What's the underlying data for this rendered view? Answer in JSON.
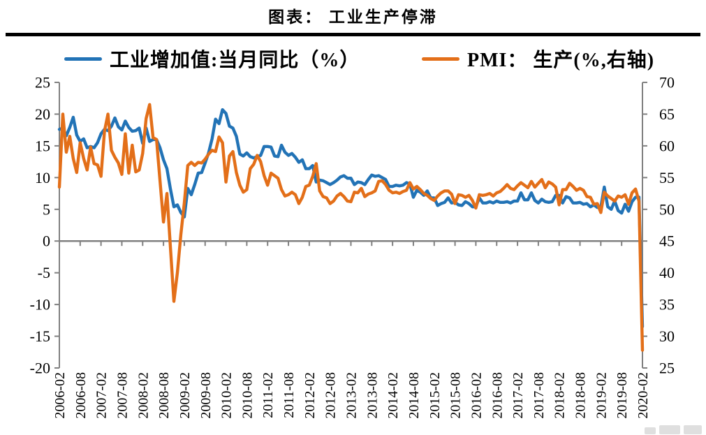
{
  "title": "图表： 工业生产停滞",
  "legend": [
    {
      "label": "工业增加值:当月同比（%）",
      "color": "#2273B6"
    },
    {
      "label": "PMI： 生产(%,右轴)",
      "color": "#E36F19"
    }
  ],
  "chart_data": {
    "type": "line",
    "title": "图表： 工业生产停滞",
    "x_start": "2006-02",
    "x_freq": "monthly",
    "x_count": 169,
    "x_tick_labels": [
      "2006-02",
      "2006-08",
      "2007-02",
      "2007-08",
      "2008-02",
      "2008-08",
      "2009-02",
      "2009-08",
      "2010-02",
      "2010-08",
      "2011-02",
      "2011-08",
      "2012-02",
      "2012-08",
      "2013-02",
      "2013-08",
      "2014-02",
      "2014-08",
      "2015-02",
      "2015-08",
      "2016-02",
      "2016-08",
      "2017-02",
      "2017-08",
      "2018-02",
      "2018-08",
      "2019-02",
      "2019-08",
      "2020-02"
    ],
    "left_axis": {
      "min": -20,
      "max": 25,
      "step": 5,
      "ticks": [
        25,
        20,
        15,
        10,
        5,
        0,
        -5,
        -10,
        -15,
        -20
      ]
    },
    "right_axis": {
      "min": 25,
      "max": 70,
      "step": 5,
      "ticks": [
        70,
        65,
        60,
        55,
        50,
        45,
        40,
        35,
        30,
        25
      ]
    },
    "zero_line_left_value": 0,
    "axis_color": "#808080",
    "grid": "off",
    "legend_position": "top",
    "series": [
      {
        "name": "工业增加值:当月同比（%）",
        "axis": "left",
        "color": "#2273B6",
        "values": [
          17.6,
          17.8,
          16.6,
          17.9,
          19.5,
          16.7,
          15.7,
          16.1,
          14.7,
          14.9,
          14.7,
          15.5,
          16.9,
          17.6,
          17.4,
          18.1,
          19.4,
          18.0,
          17.5,
          18.9,
          17.9,
          17.3,
          17.4,
          17.8,
          15.4,
          17.8,
          15.7,
          16.0,
          16.0,
          14.7,
          12.8,
          11.4,
          8.2,
          5.4,
          5.7,
          4.5,
          3.8,
          8.3,
          7.3,
          8.9,
          10.7,
          10.8,
          12.3,
          13.9,
          16.1,
          19.2,
          18.5,
          20.7,
          20.1,
          18.1,
          17.8,
          16.5,
          13.7,
          13.4,
          13.9,
          13.3,
          13.1,
          13.3,
          13.5,
          14.9,
          14.9,
          14.8,
          13.4,
          13.3,
          15.1,
          14.0,
          13.5,
          13.8,
          13.2,
          12.4,
          12.8,
          11.4,
          11.4,
          11.9,
          9.3,
          9.6,
          9.5,
          9.2,
          8.9,
          9.2,
          9.6,
          10.1,
          10.3,
          9.9,
          9.9,
          8.9,
          9.3,
          9.2,
          8.9,
          9.7,
          10.4,
          10.2,
          10.3,
          10.0,
          9.7,
          8.6,
          8.6,
          8.8,
          8.7,
          8.8,
          9.2,
          9.0,
          6.9,
          8.0,
          7.7,
          7.2,
          7.9,
          6.8,
          6.8,
          5.6,
          5.9,
          6.1,
          6.8,
          6.0,
          6.1,
          5.7,
          5.6,
          6.2,
          5.9,
          5.4,
          5.4,
          6.8,
          6.0,
          6.0,
          6.2,
          6.0,
          6.3,
          6.1,
          6.1,
          6.2,
          6.0,
          6.3,
          6.3,
          7.6,
          6.5,
          6.5,
          7.6,
          6.4,
          6.0,
          6.6,
          6.2,
          6.1,
          6.2,
          7.2,
          7.2,
          6.0,
          7.0,
          6.8,
          6.0,
          6.0,
          6.1,
          5.8,
          5.9,
          5.4,
          5.7,
          5.3,
          5.3,
          8.5,
          5.4,
          5.0,
          6.3,
          4.8,
          4.4,
          5.8,
          4.7,
          6.2,
          6.9,
          6.9,
          -13.5
        ]
      },
      {
        "name": "PMI： 生产(%,右轴)",
        "axis": "right",
        "color": "#E36F19",
        "values": [
          53.5,
          65.0,
          59.0,
          61.5,
          58.0,
          55.8,
          60.5,
          58.0,
          56.2,
          59.8,
          57.2,
          57.0,
          55.2,
          62.3,
          65.0,
          59.3,
          58.2,
          57.3,
          55.5,
          61.9,
          55.7,
          60.1,
          55.9,
          56.2,
          58.8,
          64.3,
          66.5,
          61.3,
          61.0,
          54.5,
          48.0,
          52.5,
          44.0,
          35.5,
          40.0,
          46.0,
          51.0,
          56.9,
          57.4,
          56.9,
          57.4,
          57.3,
          57.9,
          58.7,
          59.3,
          59.1,
          61.4,
          60.5,
          54.3,
          58.4,
          59.1,
          55.8,
          53.8,
          52.7,
          53.1,
          56.4,
          57.1,
          58.5,
          57.5,
          55.3,
          53.8,
          55.7,
          55.3,
          54.9,
          53.1,
          52.1,
          52.3,
          52.7,
          52.3,
          50.9,
          51.9,
          53.6,
          53.8,
          55.2,
          57.2,
          52.9,
          52.0,
          51.8,
          50.9,
          51.3,
          52.1,
          52.5,
          52.0,
          51.3,
          51.2,
          52.7,
          52.6,
          53.3,
          52.0,
          52.4,
          52.6,
          52.9,
          54.4,
          54.5,
          53.9,
          53.0,
          52.6,
          52.7,
          52.5,
          52.8,
          53.0,
          54.2,
          53.2,
          53.6,
          53.1,
          52.5,
          52.2,
          51.7,
          51.4,
          52.1,
          52.6,
          52.9,
          52.9,
          52.4,
          50.9,
          52.3,
          52.2,
          51.9,
          52.2,
          51.4,
          50.2,
          52.3,
          52.2,
          52.3,
          52.5,
          52.1,
          52.6,
          52.8,
          53.3,
          53.9,
          53.3,
          53.1,
          53.7,
          54.2,
          53.8,
          53.4,
          54.4,
          53.5,
          54.1,
          54.7,
          53.4,
          54.3,
          54.0,
          53.5,
          50.7,
          53.1,
          53.1,
          54.1,
          53.6,
          53.0,
          53.3,
          53.0,
          52.0,
          51.9,
          50.8,
          50.9,
          49.5,
          52.7,
          52.1,
          51.7,
          51.3,
          52.1,
          51.9,
          52.3,
          50.8,
          52.6,
          53.2,
          51.3,
          27.8
        ]
      }
    ]
  }
}
